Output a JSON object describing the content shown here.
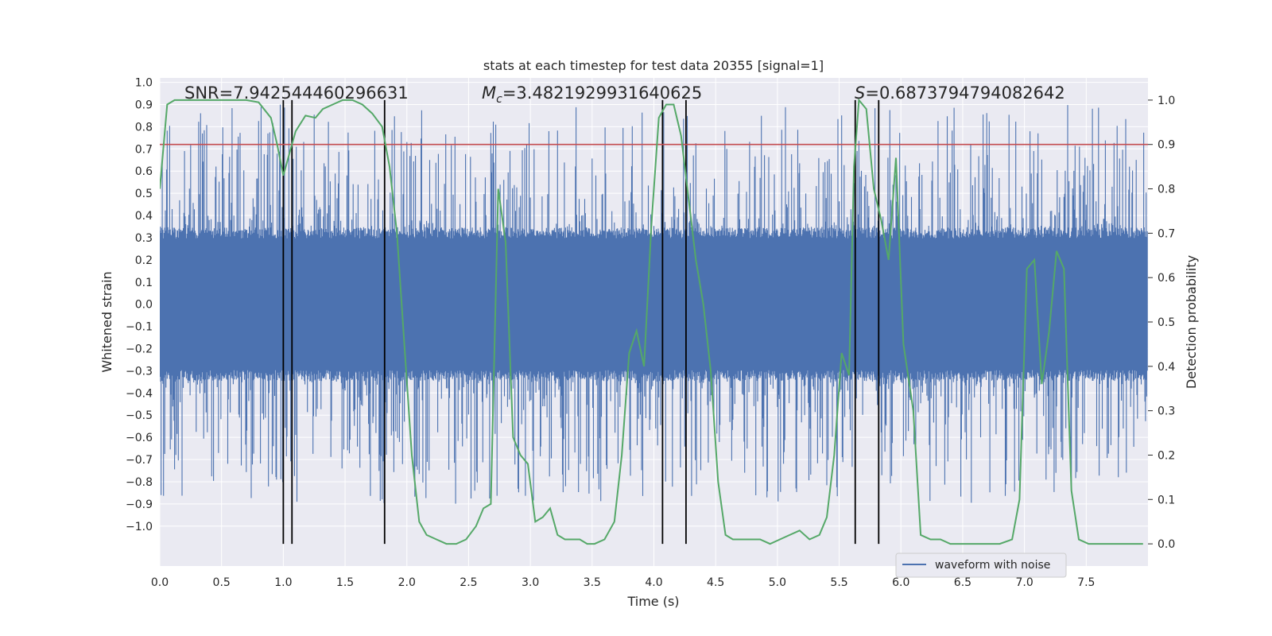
{
  "chart_data": {
    "type": "line",
    "title": "stats at each timestep for test data 20355 [signal=1]",
    "xlabel": "Time (s)",
    "ylabel_left": "Whitened strain",
    "ylabel_right": "Detection probability",
    "xlim": [
      0.0,
      8.0
    ],
    "ylim_left": [
      -1.18,
      1.02
    ],
    "ylim_right": [
      -0.05,
      1.05
    ],
    "x_ticks": [
      "0.0",
      "0.5",
      "1.0",
      "1.5",
      "2.0",
      "2.5",
      "3.0",
      "3.5",
      "4.0",
      "4.5",
      "5.0",
      "5.5",
      "6.0",
      "6.5",
      "7.0",
      "7.5"
    ],
    "y_ticks_left": [
      "1.0",
      "0.9",
      "0.8",
      "0.7",
      "0.6",
      "0.5",
      "0.4",
      "0.3",
      "0.2",
      "0.1",
      "0.0",
      "−0.1",
      "−0.2",
      "−0.3",
      "−0.4",
      "−0.5",
      "−0.6",
      "−0.7",
      "−0.8",
      "−0.9",
      "−1.0"
    ],
    "y_ticks_right": [
      "1.0",
      "0.9",
      "0.8",
      "0.7",
      "0.6",
      "0.5",
      "0.4",
      "0.3",
      "0.2",
      "0.1",
      "0.0"
    ],
    "grid": true,
    "legend": {
      "position": "bottom-right",
      "entries": [
        "waveform with noise"
      ]
    },
    "annotations": {
      "snr": "SNR=7.942544460296631",
      "mc_prefix": "M",
      "mc_sub": "c",
      "mc_value": "=3.4821929931640625",
      "s_prefix": "S",
      "s_value": "=0.6873794794082642"
    },
    "threshold": {
      "value": 0.9,
      "axis": "right",
      "color": "#c44e52"
    },
    "vertical_markers": [
      1.0,
      1.07,
      1.82,
      4.07,
      4.26,
      5.63,
      5.82
    ],
    "colors": {
      "waveform": "#4c72b0",
      "probability": "#55a868",
      "threshold": "#c44e52",
      "markers": "#000000",
      "plot_bg": "#eaeaf2",
      "grid": "#ffffff"
    },
    "series": [
      {
        "name": "waveform with noise",
        "axis": "left",
        "envelope_note": "dense noisy strain, core amplitude about ±0.33 with spikes to ±0.9",
        "x": [
          0.0,
          8.0
        ],
        "amplitude_core": 0.33,
        "amplitude_peaks": 0.9
      },
      {
        "axis": "right",
        "x": [
          0.0,
          0.06,
          0.12,
          0.2,
          0.3,
          0.4,
          0.5,
          0.6,
          0.7,
          0.8,
          0.9,
          0.95,
          1.0,
          1.05,
          1.1,
          1.18,
          1.26,
          1.32,
          1.4,
          1.48,
          1.56,
          1.64,
          1.72,
          1.8,
          1.86,
          1.92,
          1.98,
          2.04,
          2.1,
          2.16,
          2.24,
          2.32,
          2.4,
          2.48,
          2.56,
          2.62,
          2.68,
          2.74,
          2.8,
          2.86,
          2.92,
          2.98,
          3.04,
          3.1,
          3.16,
          3.22,
          3.28,
          3.34,
          3.4,
          3.46,
          3.52,
          3.6,
          3.68,
          3.74,
          3.8,
          3.86,
          3.92,
          3.98,
          4.04,
          4.1,
          4.16,
          4.22,
          4.28,
          4.34,
          4.4,
          4.46,
          4.52,
          4.58,
          4.64,
          4.7,
          4.78,
          4.86,
          4.94,
          5.02,
          5.1,
          5.18,
          5.26,
          5.34,
          5.4,
          5.46,
          5.52,
          5.58,
          5.62,
          5.66,
          5.72,
          5.78,
          5.84,
          5.9,
          5.96,
          6.02,
          6.1,
          6.16,
          6.24,
          6.32,
          6.4,
          6.5,
          6.6,
          6.7,
          6.8,
          6.9,
          6.96,
          7.02,
          7.08,
          7.14,
          7.2,
          7.26,
          7.32,
          7.38,
          7.44,
          7.52,
          7.6,
          7.7,
          7.8,
          7.9,
          7.96
        ],
        "y": [
          0.8,
          0.99,
          1.0,
          1.0,
          1.0,
          1.0,
          1.0,
          1.0,
          1.0,
          0.995,
          0.96,
          0.9,
          0.83,
          0.88,
          0.93,
          0.965,
          0.96,
          0.98,
          0.99,
          1.0,
          1.0,
          0.99,
          0.97,
          0.94,
          0.85,
          0.7,
          0.45,
          0.2,
          0.05,
          0.02,
          0.01,
          0.0,
          0.0,
          0.01,
          0.04,
          0.08,
          0.09,
          0.8,
          0.68,
          0.24,
          0.2,
          0.18,
          0.05,
          0.06,
          0.08,
          0.02,
          0.01,
          0.01,
          0.01,
          0.0,
          0.0,
          0.01,
          0.05,
          0.2,
          0.43,
          0.48,
          0.4,
          0.72,
          0.96,
          0.99,
          0.99,
          0.92,
          0.78,
          0.64,
          0.54,
          0.39,
          0.14,
          0.02,
          0.01,
          0.01,
          0.01,
          0.01,
          0.0,
          0.01,
          0.02,
          0.03,
          0.01,
          0.02,
          0.06,
          0.2,
          0.43,
          0.38,
          0.85,
          1.0,
          0.98,
          0.8,
          0.73,
          0.64,
          0.87,
          0.45,
          0.3,
          0.02,
          0.01,
          0.01,
          0.0,
          0.0,
          0.0,
          0.0,
          0.0,
          0.01,
          0.1,
          0.62,
          0.64,
          0.36,
          0.48,
          0.66,
          0.62,
          0.12,
          0.01,
          0.0,
          0.0,
          0.0,
          0.0,
          0.0,
          0.0
        ]
      }
    ]
  }
}
